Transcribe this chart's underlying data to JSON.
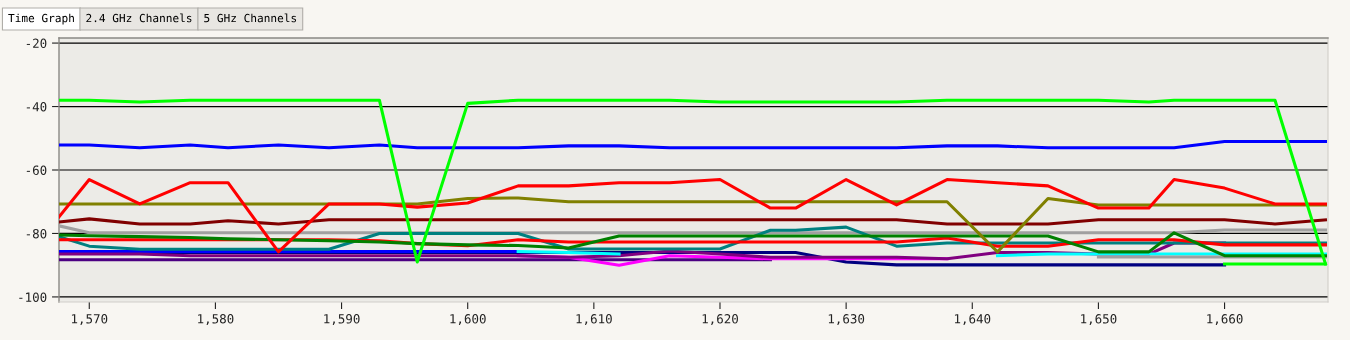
{
  "chart_data": {
    "type": "line",
    "annotations": [
      "Time Graph",
      "2.4 GHz Channels",
      "5 GHz Channels"
    ],
    "x": [
      1567.6,
      1570,
      1574,
      1578,
      1581,
      1585,
      1589,
      1593,
      1596,
      1600,
      1604,
      1608,
      1612,
      1616,
      1620,
      1624,
      1626,
      1630,
      1634,
      1638,
      1642,
      1646,
      1650,
      1654,
      1656,
      1660,
      1664,
      1668
    ],
    "xlim": [
      1567.6,
      1668.2
    ],
    "ylim": [
      -101.6,
      -18.4
    ],
    "xticks": [
      {
        "value": 1570,
        "label": "1,570"
      },
      {
        "value": 1580,
        "label": "1,580"
      },
      {
        "value": 1590,
        "label": "1,590"
      },
      {
        "value": 1600,
        "label": "1,600"
      },
      {
        "value": 1610,
        "label": "1,610"
      },
      {
        "value": 1620,
        "label": "1,620"
      },
      {
        "value": 1630,
        "label": "1,630"
      },
      {
        "value": 1640,
        "label": "1,640"
      },
      {
        "value": 1650,
        "label": "1,650"
      },
      {
        "value": 1660,
        "label": "1,660"
      }
    ],
    "yticks": [
      -100,
      -80,
      -60,
      -40,
      -20
    ],
    "grid": "y",
    "marker": "none",
    "line_style": "solid",
    "series": [
      {
        "color": "#000080",
        "values": [
          null,
          null,
          -86,
          -86,
          -86,
          -86,
          -86,
          -86,
          -86,
          -86,
          -86,
          -86,
          -86,
          -86,
          -86,
          -86,
          -86,
          -89,
          -89.9,
          -89.9,
          -89.9,
          -89.9,
          -89.9,
          -89.9,
          -89.9,
          -89.9,
          null,
          null
        ]
      },
      {
        "color": "#4b0082",
        "values": [
          -88.3,
          -88.3,
          -88.3,
          -88.3,
          -88.3,
          -88.3,
          -88.3,
          -88.3,
          -88.3,
          -88.3,
          -88.3,
          -88.3,
          -88.3,
          -88.3,
          -88.3,
          -88.3,
          null,
          null,
          null,
          null,
          null,
          null,
          null,
          null,
          null,
          null,
          null,
          null
        ]
      },
      {
        "color": "#0000ff",
        "values": [
          -85.7,
          -85.7,
          -85.7,
          -85.7,
          -85.7,
          -85.7,
          -85.7,
          -85.7,
          -85.7,
          -85.7,
          -85.7,
          null,
          null,
          null,
          null,
          null,
          null,
          null,
          null,
          null,
          null,
          null,
          null,
          null,
          null,
          null,
          null,
          null
        ]
      },
      {
        "color": "#ff00ff",
        "values": [
          null,
          null,
          null,
          null,
          null,
          null,
          null,
          null,
          null,
          null,
          -87,
          -87.5,
          -90,
          -87,
          -87.5,
          -88,
          -88,
          -88,
          -88,
          -88,
          null,
          null,
          null,
          null,
          null,
          null,
          null,
          null
        ]
      },
      {
        "color": "#800080",
        "values": [
          -86.5,
          -86.5,
          -86.5,
          -87,
          -87,
          -87,
          -87,
          -87,
          -87,
          -87,
          -87,
          -87.5,
          -87,
          -85.5,
          -86.5,
          -87.5,
          -87.5,
          -87.5,
          -87.5,
          -88,
          -86,
          -86,
          -86.5,
          -86.5,
          -83,
          -83,
          null,
          null
        ]
      },
      {
        "color": "#00ffff",
        "values": [
          null,
          null,
          null,
          null,
          null,
          null,
          null,
          null,
          null,
          null,
          -85.7,
          -86,
          -86.5,
          null,
          null,
          null,
          null,
          null,
          null,
          null,
          -87,
          -86.5,
          -86.5,
          -86.5,
          -86.5,
          -86.5,
          -86.5,
          -86.5
        ]
      },
      {
        "color": "#a0a0a0",
        "values": [
          -77.6,
          -79.8,
          -79.8,
          -79.8,
          -79.8,
          -79.8,
          -79.8,
          -79.8,
          -79.8,
          -79.8,
          -79.8,
          -79.8,
          -79.8,
          -79.8,
          -79.8,
          -79.8,
          -79.8,
          -79.8,
          -79.8,
          -79.8,
          -79.8,
          -79.8,
          -79.8,
          -79.8,
          -79.8,
          -78.9,
          -78.9,
          -78.9
        ]
      },
      {
        "color": "#a0a0a0",
        "values": [
          null,
          null,
          null,
          null,
          null,
          null,
          null,
          null,
          null,
          null,
          null,
          null,
          null,
          null,
          null,
          null,
          null,
          null,
          null,
          null,
          null,
          null,
          -87.4,
          -87.4,
          -87.4,
          -87.4,
          -87.4,
          -87.4
        ]
      },
      {
        "color": "#008080",
        "values": [
          -81,
          -84,
          -85,
          -85,
          -85,
          -85,
          -85,
          -80,
          -80,
          -80,
          -80,
          -84.9,
          -84.9,
          -84.9,
          -84.9,
          -79,
          -79,
          -78,
          -84,
          -83,
          -83,
          -83,
          -83,
          -83,
          -83,
          -83,
          -83,
          -83
        ]
      },
      {
        "color": "#ff0000",
        "values": [
          -82,
          -82,
          -82,
          -82,
          -82,
          -82,
          -82,
          -82.3,
          -83.2,
          -83.9,
          -82,
          -82.7,
          -82.7,
          -82.7,
          -82.7,
          -82.7,
          -82.7,
          -82.7,
          -82.7,
          -81.4,
          -84,
          -84,
          -82,
          -82,
          -82,
          -83.6,
          -83.6,
          -83.6
        ]
      },
      {
        "color": "#008000",
        "values": [
          -80.5,
          -80.7,
          -81,
          -81.3,
          -81.7,
          -82,
          -82.3,
          -82.7,
          -83.2,
          -83.6,
          -83.8,
          -84.6,
          -80.8,
          -80.8,
          -80.8,
          -80.8,
          -80.8,
          -80.8,
          -80.8,
          -80.8,
          -80.8,
          -80.8,
          -85.8,
          -85.8,
          -79.8,
          -87,
          -87,
          -87
        ]
      },
      {
        "color": "#800000",
        "values": [
          -76.4,
          -75.4,
          -77,
          -77,
          -76,
          -77,
          -75.7,
          -75.7,
          -75.7,
          -75.7,
          -75.7,
          -75.7,
          -75.7,
          -75.7,
          -75.7,
          -75.7,
          -75.7,
          -75.7,
          -75.7,
          -77,
          -77,
          -77,
          -75.7,
          -75.7,
          -75.7,
          -75.7,
          -77,
          -75.7
        ]
      },
      {
        "color": "#808000",
        "values": [
          -70.7,
          -70.7,
          -70.7,
          -70.7,
          -70.7,
          -70.7,
          -70.7,
          -70.7,
          -70.7,
          -69,
          -68.8,
          -70,
          -70,
          -70,
          -70,
          -70,
          -70,
          -70,
          -70,
          -70,
          -85.8,
          -69,
          -71,
          -71,
          -71,
          -71,
          -71,
          -71
        ]
      },
      {
        "color": "#ff0000",
        "values": [
          -74.8,
          -63,
          -70.7,
          -64,
          -64,
          -85.8,
          -70.7,
          -70.7,
          -71.7,
          -70.4,
          -65,
          -65,
          -64,
          -64,
          -63,
          -72,
          -72,
          -63,
          -71,
          -63,
          -64,
          -65,
          -72,
          -72,
          -63,
          -65.7,
          -70.7,
          -70.7
        ]
      },
      {
        "color": "#0000ff",
        "values": [
          -52.1,
          -52.1,
          -53,
          -52.1,
          -53,
          -52.1,
          -53,
          -52.1,
          -53,
          -53,
          -53,
          -52.4,
          -52.4,
          -53,
          -53,
          -53,
          -53,
          -53,
          -53,
          -52.4,
          -52.4,
          -53,
          -53,
          -53,
          -53,
          -51,
          -51,
          -51
        ]
      },
      {
        "color": "#00ff00",
        "values": [
          null,
          null,
          null,
          null,
          null,
          null,
          null,
          null,
          null,
          null,
          null,
          null,
          null,
          null,
          null,
          null,
          null,
          null,
          null,
          null,
          null,
          null,
          null,
          null,
          null,
          -89.6,
          -89.6,
          -89.6
        ]
      },
      {
        "color": "#00ff00",
        "values": [
          -38,
          -38,
          -38.6,
          -38,
          -38,
          -38,
          -38,
          -38,
          -89,
          -39,
          -38,
          -38,
          -38,
          -38,
          -38.6,
          -38.6,
          -38.6,
          -38.6,
          -38.6,
          -38,
          -38,
          -38,
          -38,
          -38.6,
          -38,
          -38,
          -38,
          -89.6
        ]
      }
    ]
  }
}
